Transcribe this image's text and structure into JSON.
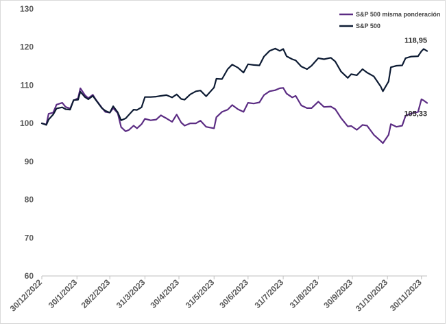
{
  "chart_data": {
    "type": "line",
    "title": "",
    "xlabel": "",
    "ylabel": "",
    "ylim": [
      60,
      130
    ],
    "yticks": [
      60,
      70,
      80,
      90,
      100,
      110,
      120,
      130
    ],
    "x_tick_labels": [
      "30/12/2022",
      "30/1/2023",
      "28/2/2023",
      "31/3/2023",
      "30/4/2023",
      "31/5/2023",
      "30/6/2023",
      "31/7/2023",
      "31/8/2023",
      "30/9/2023",
      "31/10/2023",
      "30/11/2023"
    ],
    "x_tick_dates": [
      "2022-12-30",
      "2023-01-30",
      "2023-02-28",
      "2023-03-31",
      "2023-04-30",
      "2023-05-31",
      "2023-06-30",
      "2023-07-31",
      "2023-08-31",
      "2023-09-30",
      "2023-10-31",
      "2023-11-30"
    ],
    "x_range": [
      "2022-12-30",
      "2023-12-05"
    ],
    "grid": false,
    "legend_position": "top-right",
    "series": [
      {
        "name": "S&P 500 misma ponderación",
        "color": "#5b2c83",
        "end_label": "105,33",
        "points": [
          [
            "2022-12-30",
            100.0
          ],
          [
            "2023-01-03",
            99.7
          ],
          [
            "2023-01-05",
            102.5
          ],
          [
            "2023-01-09",
            102.8
          ],
          [
            "2023-01-12",
            104.9
          ],
          [
            "2023-01-17",
            105.4
          ],
          [
            "2023-01-20",
            104.3
          ],
          [
            "2023-01-24",
            103.9
          ],
          [
            "2023-01-27",
            106.0
          ],
          [
            "2023-01-31",
            106.6
          ],
          [
            "2023-02-02",
            109.2
          ],
          [
            "2023-02-06",
            107.4
          ],
          [
            "2023-02-09",
            106.6
          ],
          [
            "2023-02-13",
            107.5
          ],
          [
            "2023-02-16",
            106.1
          ],
          [
            "2023-02-21",
            104.1
          ],
          [
            "2023-02-24",
            103.0
          ],
          [
            "2023-02-28",
            102.8
          ],
          [
            "2023-03-03",
            104.0
          ],
          [
            "2023-03-07",
            102.7
          ],
          [
            "2023-03-10",
            99.0
          ],
          [
            "2023-03-14",
            97.9
          ],
          [
            "2023-03-17",
            98.3
          ],
          [
            "2023-03-21",
            99.4
          ],
          [
            "2023-03-24",
            98.7
          ],
          [
            "2023-03-28",
            99.8
          ],
          [
            "2023-03-31",
            101.2
          ],
          [
            "2023-04-05",
            100.8
          ],
          [
            "2023-04-10",
            101.0
          ],
          [
            "2023-04-14",
            102.1
          ],
          [
            "2023-04-19",
            101.3
          ],
          [
            "2023-04-24",
            100.4
          ],
          [
            "2023-04-28",
            102.3
          ],
          [
            "2023-05-02",
            100.2
          ],
          [
            "2023-05-05",
            99.4
          ],
          [
            "2023-05-10",
            100.0
          ],
          [
            "2023-05-15",
            100.0
          ],
          [
            "2023-05-19",
            100.7
          ],
          [
            "2023-05-24",
            99.1
          ],
          [
            "2023-05-31",
            98.7
          ],
          [
            "2023-06-02",
            101.6
          ],
          [
            "2023-06-07",
            103.0
          ],
          [
            "2023-06-12",
            103.6
          ],
          [
            "2023-06-16",
            104.8
          ],
          [
            "2023-06-21",
            103.7
          ],
          [
            "2023-06-26",
            103.0
          ],
          [
            "2023-06-30",
            105.4
          ],
          [
            "2023-07-05",
            105.2
          ],
          [
            "2023-07-10",
            105.5
          ],
          [
            "2023-07-14",
            107.4
          ],
          [
            "2023-07-19",
            108.4
          ],
          [
            "2023-07-24",
            108.7
          ],
          [
            "2023-07-28",
            109.2
          ],
          [
            "2023-07-31",
            109.3
          ],
          [
            "2023-08-03",
            107.8
          ],
          [
            "2023-08-08",
            106.8
          ],
          [
            "2023-08-11",
            107.2
          ],
          [
            "2023-08-16",
            104.7
          ],
          [
            "2023-08-21",
            104.0
          ],
          [
            "2023-08-25",
            104.0
          ],
          [
            "2023-08-31",
            105.7
          ],
          [
            "2023-09-05",
            104.3
          ],
          [
            "2023-09-11",
            104.4
          ],
          [
            "2023-09-15",
            103.7
          ],
          [
            "2023-09-20",
            101.4
          ],
          [
            "2023-09-26",
            99.2
          ],
          [
            "2023-09-29",
            99.3
          ],
          [
            "2023-10-04",
            98.3
          ],
          [
            "2023-10-09",
            99.6
          ],
          [
            "2023-10-13",
            99.4
          ],
          [
            "2023-10-19",
            97.0
          ],
          [
            "2023-10-25",
            95.4
          ],
          [
            "2023-10-27",
            94.8
          ],
          [
            "2023-11-01",
            97.0
          ],
          [
            "2023-11-03",
            99.8
          ],
          [
            "2023-11-08",
            99.1
          ],
          [
            "2023-11-13",
            99.4
          ],
          [
            "2023-11-16",
            102.0
          ],
          [
            "2023-11-21",
            102.6
          ],
          [
            "2023-11-27",
            103.0
          ],
          [
            "2023-11-30",
            106.3
          ],
          [
            "2023-12-02",
            106.0
          ],
          [
            "2023-12-05",
            105.33
          ]
        ]
      },
      {
        "name": "S&P 500",
        "color": "#0d1b33",
        "end_label": "118,95",
        "points": [
          [
            "2022-12-30",
            100.0
          ],
          [
            "2023-01-03",
            99.6
          ],
          [
            "2023-01-05",
            101.0
          ],
          [
            "2023-01-09",
            102.3
          ],
          [
            "2023-01-12",
            103.9
          ],
          [
            "2023-01-17",
            104.2
          ],
          [
            "2023-01-20",
            103.7
          ],
          [
            "2023-01-24",
            103.6
          ],
          [
            "2023-01-27",
            106.1
          ],
          [
            "2023-01-31",
            106.2
          ],
          [
            "2023-02-02",
            108.3
          ],
          [
            "2023-02-06",
            106.9
          ],
          [
            "2023-02-09",
            106.3
          ],
          [
            "2023-02-13",
            107.2
          ],
          [
            "2023-02-16",
            106.0
          ],
          [
            "2023-02-21",
            104.0
          ],
          [
            "2023-02-24",
            103.3
          ],
          [
            "2023-02-28",
            102.8
          ],
          [
            "2023-03-03",
            104.5
          ],
          [
            "2023-03-07",
            102.9
          ],
          [
            "2023-03-10",
            100.8
          ],
          [
            "2023-03-14",
            101.3
          ],
          [
            "2023-03-17",
            102.3
          ],
          [
            "2023-03-21",
            103.6
          ],
          [
            "2023-03-24",
            103.5
          ],
          [
            "2023-03-28",
            104.2
          ],
          [
            "2023-03-31",
            106.9
          ],
          [
            "2023-04-05",
            106.9
          ],
          [
            "2023-04-10",
            107.0
          ],
          [
            "2023-04-14",
            107.2
          ],
          [
            "2023-04-19",
            107.4
          ],
          [
            "2023-04-24",
            106.8
          ],
          [
            "2023-04-28",
            107.6
          ],
          [
            "2023-05-02",
            106.4
          ],
          [
            "2023-05-05",
            106.2
          ],
          [
            "2023-05-10",
            107.6
          ],
          [
            "2023-05-15",
            108.4
          ],
          [
            "2023-05-19",
            108.6
          ],
          [
            "2023-05-24",
            107.1
          ],
          [
            "2023-05-31",
            109.4
          ],
          [
            "2023-06-02",
            111.7
          ],
          [
            "2023-06-07",
            111.6
          ],
          [
            "2023-06-12",
            114.2
          ],
          [
            "2023-06-16",
            115.4
          ],
          [
            "2023-06-21",
            114.6
          ],
          [
            "2023-06-26",
            113.3
          ],
          [
            "2023-06-30",
            115.5
          ],
          [
            "2023-07-05",
            115.3
          ],
          [
            "2023-07-10",
            115.2
          ],
          [
            "2023-07-14",
            117.5
          ],
          [
            "2023-07-19",
            119.0
          ],
          [
            "2023-07-24",
            119.6
          ],
          [
            "2023-07-28",
            119.0
          ],
          [
            "2023-07-31",
            119.5
          ],
          [
            "2023-08-03",
            117.6
          ],
          [
            "2023-08-08",
            116.8
          ],
          [
            "2023-08-11",
            116.5
          ],
          [
            "2023-08-16",
            114.9
          ],
          [
            "2023-08-21",
            114.2
          ],
          [
            "2023-08-25",
            115.1
          ],
          [
            "2023-08-31",
            117.1
          ],
          [
            "2023-09-05",
            116.8
          ],
          [
            "2023-09-11",
            117.2
          ],
          [
            "2023-09-15",
            116.2
          ],
          [
            "2023-09-20",
            113.6
          ],
          [
            "2023-09-26",
            111.9
          ],
          [
            "2023-09-29",
            112.9
          ],
          [
            "2023-10-04",
            112.6
          ],
          [
            "2023-10-09",
            114.2
          ],
          [
            "2023-10-13",
            113.3
          ],
          [
            "2023-10-19",
            112.3
          ],
          [
            "2023-10-25",
            109.7
          ],
          [
            "2023-10-27",
            108.4
          ],
          [
            "2023-11-01",
            111.0
          ],
          [
            "2023-11-03",
            114.7
          ],
          [
            "2023-11-08",
            115.1
          ],
          [
            "2023-11-13",
            115.2
          ],
          [
            "2023-11-16",
            117.1
          ],
          [
            "2023-11-21",
            117.5
          ],
          [
            "2023-11-27",
            117.6
          ],
          [
            "2023-11-30",
            118.9
          ],
          [
            "2023-12-02",
            119.5
          ],
          [
            "2023-12-05",
            118.95
          ]
        ]
      }
    ]
  }
}
